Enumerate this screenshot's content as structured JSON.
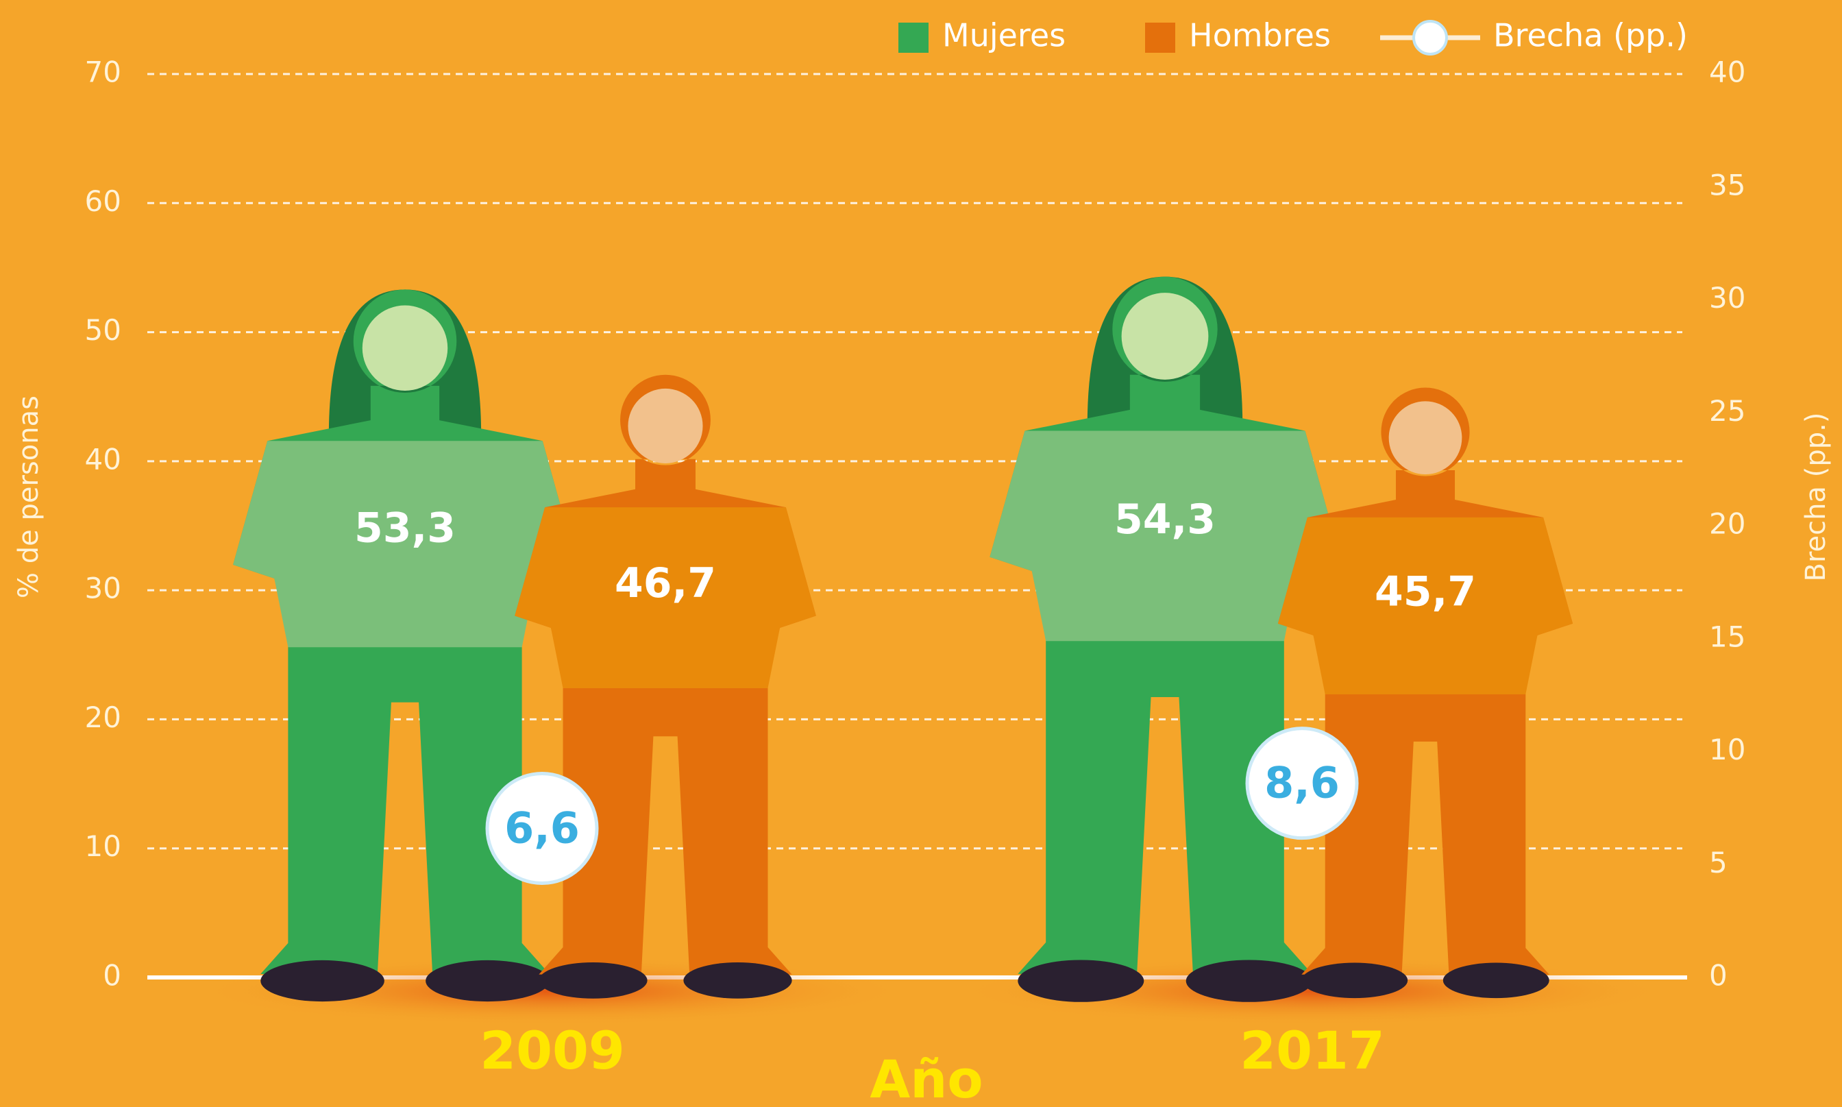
{
  "chart_data": {
    "type": "bar",
    "categories": [
      "2009",
      "2017"
    ],
    "x_label": "Año",
    "y_label": "% de personas",
    "y2_label": "Brecha (pp.)",
    "series": [
      {
        "name": "Mujeres",
        "color": "#34a853",
        "values": [
          53.3,
          54.3
        ],
        "value_labels": [
          "53,3",
          "54,3"
        ]
      },
      {
        "name": "Hombres",
        "color": "#e4700c",
        "values": [
          46.7,
          45.7
        ],
        "value_labels": [
          "46,7",
          "45,7"
        ]
      },
      {
        "name": "Brecha (pp.)",
        "type": "line",
        "axis": "y2",
        "color": "#ffffff",
        "values": [
          6.6,
          8.6
        ],
        "value_labels": [
          "6,6",
          "8,6"
        ]
      }
    ],
    "ylim": [
      0,
      70
    ],
    "yticks": [
      0,
      10,
      20,
      30,
      40,
      50,
      60,
      70
    ],
    "y2lim": [
      0,
      40
    ],
    "y2ticks": [
      0,
      5,
      10,
      15,
      20,
      25,
      30,
      35,
      40
    ],
    "grid": true
  }
}
